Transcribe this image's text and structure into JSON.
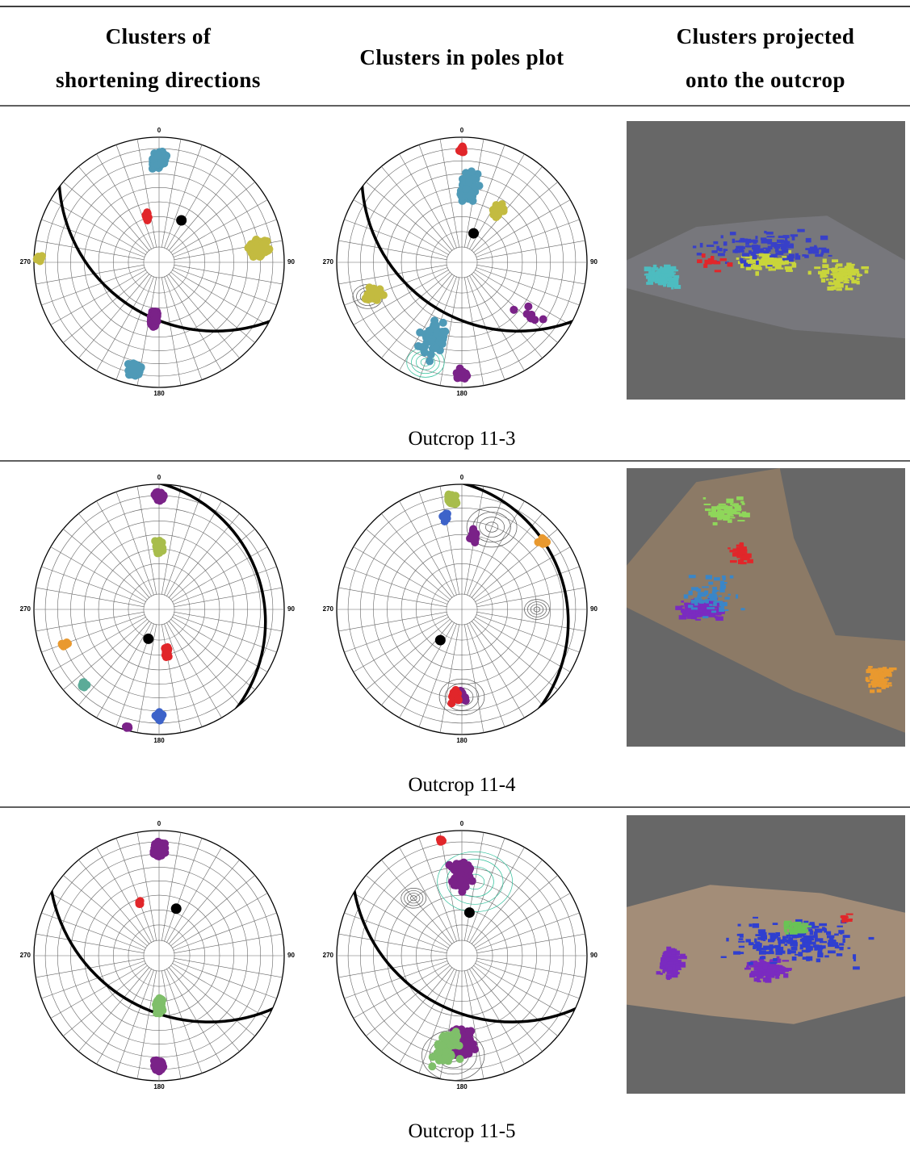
{
  "header": {
    "columns": [
      [
        "Clusters of",
        "shortening directions"
      ],
      [
        "Clusters in poles plot"
      ],
      [
        "Clusters projected",
        "onto the outcrop"
      ]
    ]
  },
  "stereonet_labels": [
    "0",
    "90",
    "180",
    "270"
  ],
  "rows": [
    {
      "caption": "Outcrop 11-3"
    },
    {
      "caption": "Outcrop 11-4"
    },
    {
      "caption": "Outcrop 11-5"
    }
  ]
}
